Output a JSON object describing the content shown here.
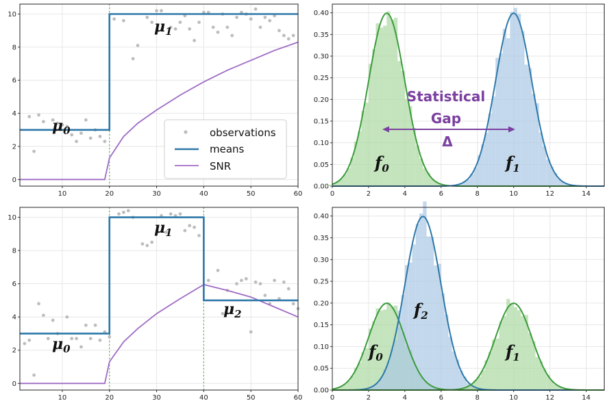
{
  "colors": {
    "means": "#2c77a8",
    "snr": "#9e6bc4",
    "obs": "#bdbdbd",
    "green_line": "#3a9a3a",
    "green_fill": "#a9d8a0",
    "blue_line": "#2c77a8",
    "blue_fill": "#a9c8e4",
    "gap": "#7b3fa0",
    "vline": "#5fae5f"
  },
  "chart_data": [
    {
      "id": "top-left",
      "type": "line",
      "xlim": [
        1,
        60
      ],
      "ylim": [
        -0.4,
        10.6
      ],
      "xticks": [
        10,
        20,
        30,
        40,
        50,
        60
      ],
      "yticks": [
        0,
        2,
        4,
        6,
        8,
        10
      ],
      "grid": true,
      "change_points": [
        20
      ],
      "legend": {
        "placement": "bottom-right",
        "entries": [
          "observations",
          "means",
          "SNR"
        ]
      },
      "means": {
        "segments": [
          {
            "x0": 1,
            "x1": 20,
            "y": 3
          },
          {
            "x0": 20,
            "x1": 60,
            "y": 10
          }
        ]
      },
      "snr": {
        "x": [
          1,
          19,
          20,
          23,
          26,
          30,
          35,
          40,
          45,
          50,
          55,
          60
        ],
        "y": [
          0,
          0,
          1.3,
          2.6,
          3.4,
          4.2,
          5.1,
          5.9,
          6.6,
          7.2,
          7.8,
          8.3
        ]
      },
      "observations": {
        "x": [
          3,
          4,
          5,
          6,
          8,
          9,
          10,
          11,
          12,
          13,
          14,
          15,
          16,
          17,
          18,
          19,
          21,
          23,
          25,
          26,
          28,
          29,
          30,
          31,
          33,
          34,
          35,
          36,
          37,
          38,
          39,
          40,
          41,
          42,
          43,
          44,
          45,
          46,
          47,
          48,
          49,
          50,
          51,
          52,
          53,
          54,
          55,
          56,
          57,
          58,
          59
        ],
        "y": [
          3.8,
          1.7,
          3.9,
          3.5,
          3.6,
          3.4,
          3.3,
          3.2,
          2.7,
          2.3,
          2.8,
          3.6,
          2.5,
          3.0,
          2.6,
          2.3,
          9.7,
          9.6,
          7.3,
          8.1,
          9.8,
          9.5,
          10.2,
          10.2,
          9.2,
          9.1,
          9.5,
          9.9,
          9.1,
          8.4,
          9.5,
          10.1,
          10.1,
          9.2,
          8.9,
          10.0,
          9.2,
          8.7,
          9.8,
          10.1,
          10.0,
          9.7,
          10.3,
          9.2,
          9.8,
          9.6,
          9.9,
          9.0,
          8.7,
          8.5,
          8.7
        ]
      },
      "labels": [
        "μ_0",
        "μ_1"
      ]
    },
    {
      "id": "top-right",
      "type": "area",
      "xlim": [
        0,
        15
      ],
      "ylim": [
        0,
        0.42
      ],
      "xticks": [
        0,
        2,
        4,
        6,
        8,
        10,
        12,
        14
      ],
      "yticks": [
        "0.00",
        "0.05",
        "0.10",
        "0.15",
        "0.20",
        "0.25",
        "0.30",
        "0.35",
        "0.40"
      ],
      "grid": true,
      "series": [
        {
          "mean": 3,
          "sd": 1,
          "weight": 1,
          "color": "green",
          "label": "f_0"
        },
        {
          "mean": 10,
          "sd": 1,
          "weight": 1,
          "color": "blue",
          "label": "f_1"
        }
      ],
      "annotation": {
        "lines": [
          "Statistical",
          "Gap",
          "Δ"
        ],
        "arrow_from": 3,
        "arrow_to": 10,
        "arrow_y": 0.14
      }
    },
    {
      "id": "bottom-left",
      "type": "line",
      "xlim": [
        1,
        60
      ],
      "ylim": [
        -0.4,
        10.6
      ],
      "xticks": [
        10,
        20,
        30,
        40,
        50,
        60
      ],
      "yticks": [
        0,
        2,
        4,
        6,
        8,
        10
      ],
      "grid": true,
      "change_points": [
        20,
        40
      ],
      "means": {
        "segments": [
          {
            "x0": 1,
            "x1": 20,
            "y": 3
          },
          {
            "x0": 20,
            "x1": 40,
            "y": 10
          },
          {
            "x0": 40,
            "x1": 60,
            "y": 5
          }
        ]
      },
      "snr": {
        "x": [
          1,
          19,
          20,
          23,
          26,
          30,
          35,
          40,
          45,
          50,
          55,
          60
        ],
        "y": [
          0,
          0,
          1.3,
          2.5,
          3.3,
          4.2,
          5.1,
          5.95,
          5.6,
          5.2,
          4.6,
          4.0
        ]
      },
      "observations": {
        "x": [
          2,
          3,
          4,
          5,
          6,
          7,
          8,
          9,
          11,
          12,
          13,
          14,
          15,
          16,
          17,
          18,
          19,
          20,
          22,
          23,
          24,
          25,
          27,
          28,
          29,
          31,
          32,
          33,
          34,
          35,
          36,
          37,
          38,
          39,
          41,
          43,
          44,
          45,
          46,
          47,
          48,
          49,
          50,
          51,
          52,
          53,
          54,
          55,
          56,
          57,
          58,
          59,
          60
        ],
        "y": [
          2.4,
          2.6,
          0.5,
          4.8,
          4.1,
          2.7,
          3.8,
          3.0,
          4.0,
          2.7,
          2.7,
          2.2,
          3.5,
          2.7,
          3.5,
          2.6,
          3.1,
          2.8,
          10.2,
          10.3,
          10.4,
          10.0,
          8.4,
          8.3,
          8.5,
          10.1,
          9.1,
          10.2,
          10.1,
          10.2,
          9.2,
          9.5,
          9.4,
          8.9,
          6.2,
          6.8,
          4.2,
          5.6,
          4.4,
          6.0,
          6.2,
          6.3,
          3.1,
          6.1,
          6.0,
          5.3,
          4.8,
          6.2,
          5.1,
          6.1,
          5.7,
          4.8,
          4.5
        ]
      },
      "labels": [
        "μ_0",
        "μ_1",
        "μ_2"
      ]
    },
    {
      "id": "bottom-right",
      "type": "area",
      "xlim": [
        0,
        15
      ],
      "ylim": [
        0,
        0.42
      ],
      "xticks": [
        0,
        2,
        4,
        6,
        8,
        10,
        12,
        14
      ],
      "yticks": [
        "0.00",
        "0.05",
        "0.10",
        "0.15",
        "0.20",
        "0.25",
        "0.30",
        "0.35",
        "0.40"
      ],
      "grid": true,
      "series": [
        {
          "mean": 3,
          "sd": 1,
          "weight": 0.5,
          "color": "green",
          "label": "f_0"
        },
        {
          "mean": 5,
          "sd": 1,
          "weight": 1,
          "color": "blue",
          "label": "f_2"
        },
        {
          "mean": 10,
          "sd": 1,
          "weight": 0.5,
          "color": "green",
          "label": "f_1"
        }
      ]
    }
  ],
  "text": {
    "legend_observations": "observations",
    "legend_means": "means",
    "legend_snr": "SNR",
    "gap_line1": "Statistical",
    "gap_line2": "Gap",
    "gap_line3": "Δ",
    "mu": "μ",
    "f": "f",
    "sub0": "0",
    "sub1": "1",
    "sub2": "2"
  }
}
